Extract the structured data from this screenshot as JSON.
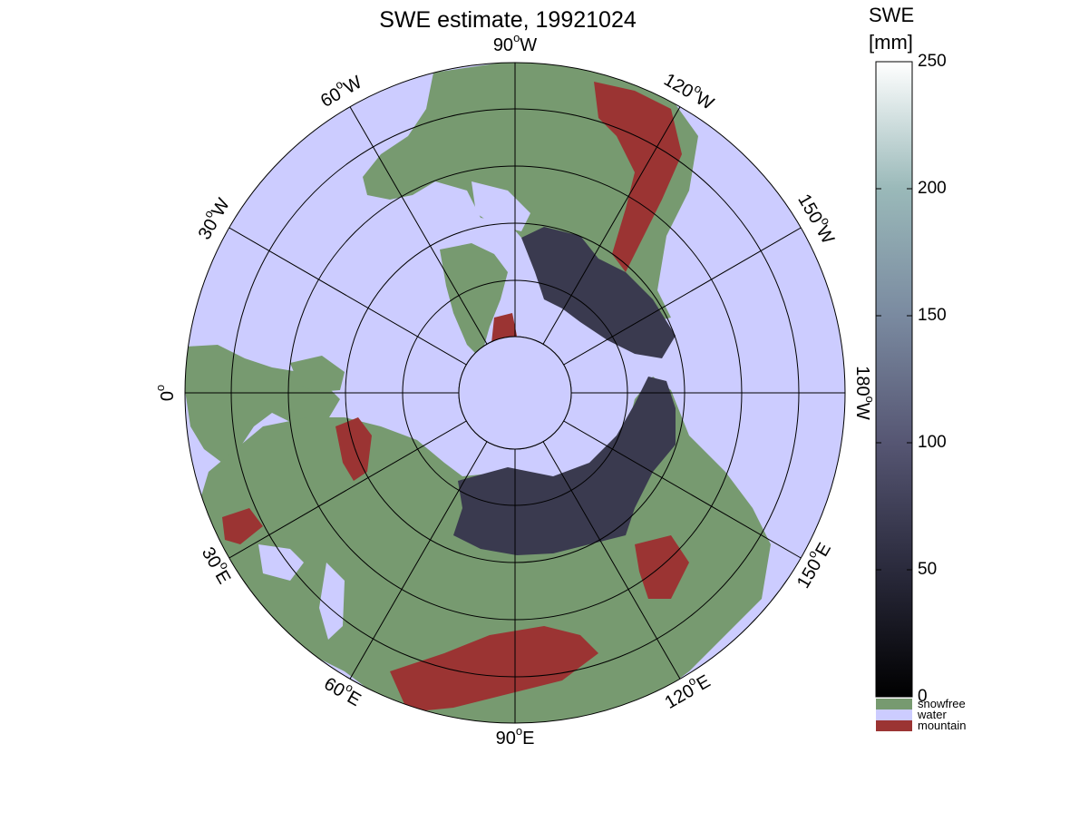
{
  "map": {
    "title": "SWE estimate, 19921024",
    "projection": "polar-stereographic-north",
    "land_color": "#779a70",
    "water_color": "#ccccff",
    "mountain_color": "#9b3433",
    "snow_color": "#3a3a4f",
    "graticule_color": "#000000",
    "longitude_labels": [
      {
        "deg": "90",
        "suffix": "W",
        "name": "lon-label-90w"
      },
      {
        "deg": "120",
        "suffix": "W",
        "name": "lon-label-120w"
      },
      {
        "deg": "150",
        "suffix": "W",
        "name": "lon-label-150w"
      },
      {
        "deg": "180",
        "suffix": "W",
        "name": "lon-label-180w"
      },
      {
        "deg": "150",
        "suffix": "E",
        "name": "lon-label-150e"
      },
      {
        "deg": "120",
        "suffix": "E",
        "name": "lon-label-120e"
      },
      {
        "deg": "90",
        "suffix": "E",
        "name": "lon-label-90e"
      },
      {
        "deg": "60",
        "suffix": "E",
        "name": "lon-label-60e"
      },
      {
        "deg": "30",
        "suffix": "E",
        "name": "lon-label-30e"
      },
      {
        "deg": "0",
        "suffix": "",
        "name": "lon-label-0"
      },
      {
        "deg": "30",
        "suffix": "W",
        "name": "lon-label-30w"
      },
      {
        "deg": "60",
        "suffix": "W",
        "name": "lon-label-60w"
      }
    ]
  },
  "colorbar": {
    "title_line1": "SWE",
    "title_line2": "[mm]",
    "ticks": [
      "0",
      "50",
      "100",
      "150",
      "200",
      "250"
    ],
    "range": [
      0,
      250
    ],
    "gradient_colors": [
      "#000000",
      "#2a2a3c",
      "#565673",
      "#7a8aa0",
      "#9ab9b9",
      "#ffffff"
    ],
    "categories": [
      {
        "label": "snowfree",
        "color": "#779a70"
      },
      {
        "label": "water",
        "color": "#ccccff"
      },
      {
        "label": "mountain",
        "color": "#9b3433"
      }
    ]
  }
}
